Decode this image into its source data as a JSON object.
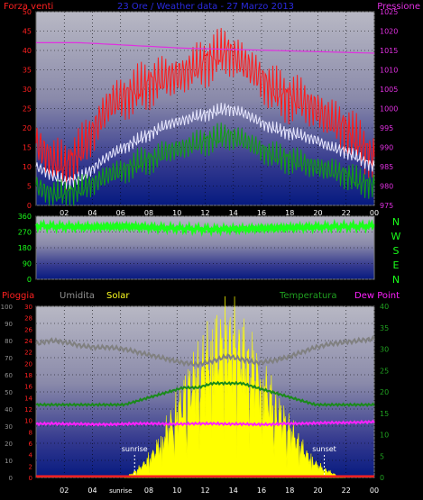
{
  "chart_data": [
    {
      "type": "line",
      "title": "23 Ore / Weather data - 27 Marzo 2013",
      "left_axis_label": "Forza venti",
      "right_axis_label": "Pressione",
      "x_ticks": [
        "02",
        "04",
        "06",
        "08",
        "10",
        "12",
        "14",
        "16",
        "18",
        "20",
        "22",
        "00"
      ],
      "y_left_ticks": [
        "0",
        "5",
        "10",
        "15",
        "20",
        "25",
        "30",
        "35",
        "40",
        "45",
        "50"
      ],
      "y_left_lim": [
        0,
        50
      ],
      "y_right_ticks": [
        "975",
        "980",
        "985",
        "990",
        "995",
        "1000",
        "1005",
        "1010",
        "1015",
        "1020",
        "1025"
      ],
      "y_right_lim": [
        975,
        1025
      ],
      "series": [
        {
          "color": "#ff1a1a",
          "x": [
            0,
            1,
            2,
            3,
            4,
            5,
            6,
            7,
            8,
            9,
            10,
            11,
            12,
            13,
            14,
            15,
            16,
            17,
            18,
            19,
            20,
            21,
            22,
            23
          ],
          "values": [
            16,
            12,
            10,
            14,
            20,
            26,
            28,
            30,
            32,
            33,
            34,
            36,
            38,
            40,
            37,
            34,
            30,
            28,
            27,
            25,
            22,
            20,
            16,
            12
          ]
        },
        {
          "color": "#e8e8ff",
          "x": [
            0,
            1,
            2,
            3,
            4,
            5,
            6,
            7,
            8,
            9,
            10,
            11,
            12,
            13,
            14,
            15,
            16,
            17,
            18,
            19,
            20,
            21,
            22,
            23
          ],
          "values": [
            10,
            8,
            6,
            7,
            10,
            13,
            15,
            17,
            19,
            21,
            22,
            23,
            24,
            25,
            24,
            22,
            20,
            19,
            18,
            17,
            15,
            14,
            12,
            10
          ]
        },
        {
          "color": "#12a012",
          "x": [
            0,
            1,
            2,
            3,
            4,
            5,
            6,
            7,
            8,
            9,
            10,
            11,
            12,
            13,
            14,
            15,
            16,
            17,
            18,
            19,
            20,
            21,
            22,
            23
          ],
          "values": [
            5,
            3,
            3,
            4,
            6,
            8,
            9,
            11,
            12,
            14,
            15,
            16,
            17,
            18,
            17,
            15,
            13,
            12,
            11,
            10,
            9,
            8,
            6,
            5
          ]
        },
        {
          "color": "#e030e0",
          "x": [
            0,
            1,
            2,
            3,
            4,
            5,
            6,
            7,
            8,
            9,
            10,
            11,
            12,
            13,
            14,
            15,
            16,
            17,
            18,
            19,
            20,
            21,
            22,
            23
          ],
          "values": [
            1017,
            1017,
            1017,
            1017,
            1016.8,
            1016.6,
            1016.4,
            1016.2,
            1016,
            1015.8,
            1015.6,
            1015.5,
            1015.4,
            1015.3,
            1015.2,
            1015.1,
            1015,
            1014.9,
            1014.8,
            1014.7,
            1014.6,
            1014.5,
            1014.4,
            1014.3
          ]
        }
      ]
    },
    {
      "type": "line",
      "y_left_ticks": [
        "360",
        "270",
        "180",
        "90",
        "0"
      ],
      "y_lim": [
        0,
        360
      ],
      "direction_labels": [
        "N",
        "W",
        "S",
        "E",
        "N"
      ],
      "series": [
        {
          "color": "#1aff1a",
          "x": [
            0,
            2,
            4,
            6,
            8,
            10,
            12,
            14,
            16,
            18,
            20,
            22,
            23
          ],
          "values": [
            305,
            300,
            298,
            302,
            295,
            290,
            285,
            288,
            292,
            296,
            300,
            302,
            305
          ]
        }
      ]
    },
    {
      "type": "line",
      "legend": [
        "Pioggia",
        "Umidita",
        "Solar",
        "Temperatura",
        "Dew Point"
      ],
      "legend_colors": [
        "#ff2020",
        "#909090",
        "#ffff20",
        "#20a020",
        "#ff20ff"
      ],
      "y_hum_ticks": [
        "0",
        "10",
        "20",
        "30",
        "40",
        "50",
        "60",
        "70",
        "80",
        "90",
        "100"
      ],
      "y_hum_lim": [
        0,
        100
      ],
      "y_rain_ticks": [
        "0",
        "2",
        "4",
        "6",
        "8",
        "10",
        "12",
        "14",
        "16",
        "18",
        "20",
        "22",
        "24",
        "26",
        "28",
        "30"
      ],
      "y_rain_lim": [
        0,
        30
      ],
      "y_temp_ticks": [
        "0",
        "5",
        "10",
        "15",
        "20",
        "25",
        "30",
        "35",
        "40"
      ],
      "y_temp_lim": [
        0,
        40
      ],
      "annotations": [
        "sunrise",
        "sunset"
      ],
      "x_ticks": [
        "02",
        "04",
        "sunrise",
        "08",
        "10",
        "12",
        "14",
        "16",
        "18",
        "20",
        "22",
        "00"
      ],
      "series": [
        {
          "name": "Umidita",
          "color": "#808080",
          "x": [
            0,
            1,
            2,
            3,
            4,
            5,
            6,
            7,
            8,
            9,
            10,
            11,
            12,
            13,
            14,
            15,
            16,
            17,
            18,
            19,
            20,
            21,
            22,
            23
          ],
          "values": [
            78,
            80,
            79,
            77,
            76,
            76,
            75,
            73,
            71,
            69,
            67,
            66,
            68,
            71,
            69,
            67,
            68,
            70,
            73,
            76,
            78,
            79,
            80,
            81
          ]
        },
        {
          "name": "Temperatura",
          "color": "#1a8a1a",
          "x": [
            0,
            1,
            2,
            3,
            4,
            5,
            6,
            7,
            8,
            9,
            10,
            11,
            12,
            13,
            14,
            15,
            16,
            17,
            18,
            19,
            20,
            21,
            22,
            23
          ],
          "values": [
            17,
            17,
            17,
            17,
            17,
            17,
            17,
            18,
            19,
            20,
            21,
            21,
            22,
            22,
            22,
            21,
            20,
            19,
            18,
            17,
            17,
            17,
            17,
            17
          ]
        },
        {
          "name": "Dew Point",
          "color": "#ff20ff",
          "x": [
            0,
            1,
            2,
            3,
            4,
            5,
            6,
            7,
            8,
            9,
            10,
            11,
            12,
            13,
            14,
            15,
            16,
            17,
            18,
            19,
            20,
            21,
            22,
            23
          ],
          "values": [
            12.5,
            12.6,
            12.5,
            12.5,
            12.4,
            12.4,
            12.5,
            12.6,
            12.6,
            12.5,
            12.5,
            12.6,
            12.6,
            12.5,
            12.5,
            12.4,
            12.4,
            12.6,
            12.6,
            12.7,
            12.8,
            12.8,
            12.9,
            13
          ]
        },
        {
          "name": "Pioggia",
          "color": "#ff2020",
          "x": [
            0,
            23
          ],
          "values": [
            0.2,
            0.2
          ]
        },
        {
          "name": "Solar",
          "color": "#ffff00",
          "x": [
            6,
            6.5,
            7,
            7.5,
            8,
            8.5,
            9,
            9.5,
            10,
            10.5,
            11,
            11.5,
            12,
            12.5,
            13,
            13.5,
            14,
            14.5,
            15,
            15.5,
            16,
            16.5,
            17,
            17.5,
            18,
            18.5,
            19,
            19.5,
            20,
            20.5,
            21
          ],
          "values": [
            0,
            2,
            5,
            9,
            14,
            20,
            28,
            36,
            44,
            52,
            58,
            64,
            70,
            74,
            76,
            74,
            70,
            64,
            58,
            52,
            44,
            36,
            30,
            24,
            18,
            12,
            8,
            5,
            3,
            1,
            0
          ]
        }
      ]
    }
  ]
}
